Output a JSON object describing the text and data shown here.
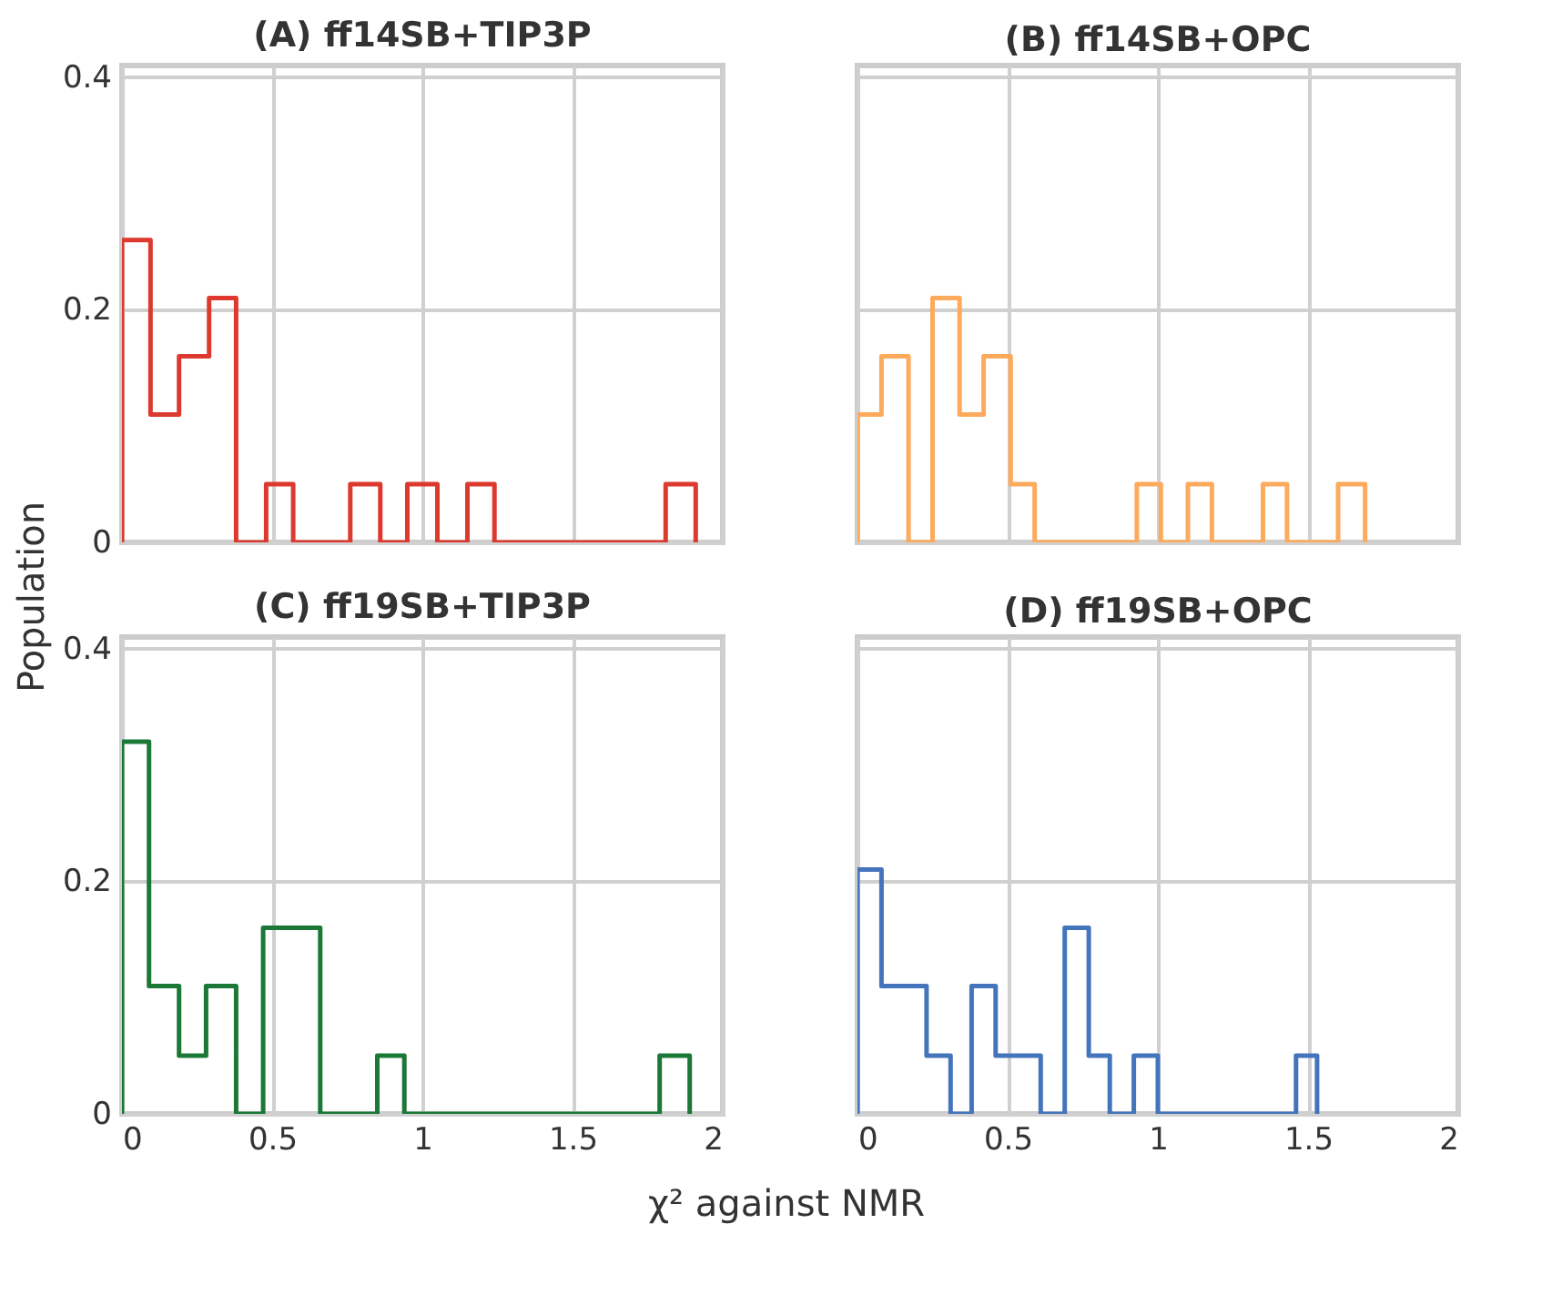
{
  "chart_data": [
    {
      "type": "histogram",
      "title": "(A) ff14SB+TIP3P",
      "ylabel": "Population",
      "color": "#dd3a2f",
      "bins": [
        0,
        0.095,
        0.19,
        0.29,
        0.38,
        0.48,
        0.57,
        0.67,
        0.76,
        0.86,
        0.95,
        1.05,
        1.15,
        1.24,
        1.34,
        1.43,
        1.53,
        1.62,
        1.72,
        1.81,
        1.91
      ],
      "values": [
        0.26,
        0.11,
        0.16,
        0.21,
        0,
        0.05,
        0,
        0,
        0.05,
        0,
        0.05,
        0,
        0.05,
        0,
        0,
        0,
        0,
        0,
        0,
        0.05
      ],
      "xlim": [
        0,
        2
      ],
      "xticks": [
        0,
        0.5,
        1,
        1.5,
        2
      ],
      "ylim": [
        0,
        0.41
      ],
      "yticks": [
        0,
        0.2,
        0.4
      ],
      "grid": true,
      "tick_labels": "y"
    },
    {
      "type": "histogram",
      "title": "(B) ff14SB+OPC",
      "color": "#fdaa5c",
      "bins": [
        0,
        0.08,
        0.17,
        0.25,
        0.34,
        0.42,
        0.51,
        0.59,
        0.67,
        0.76,
        0.84,
        0.93,
        1.01,
        1.1,
        1.18,
        1.26,
        1.35,
        1.43,
        1.52,
        1.6,
        1.69
      ],
      "values": [
        0.11,
        0.16,
        0,
        0.21,
        0.11,
        0.16,
        0.05,
        0,
        0,
        0,
        0,
        0.05,
        0,
        0.05,
        0,
        0,
        0.05,
        0,
        0,
        0.05
      ],
      "xlim": [
        0,
        2
      ],
      "xticks": [
        0,
        0.5,
        1,
        1.5,
        2
      ],
      "ylim": [
        0,
        0.41
      ],
      "yticks": [
        0,
        0.2,
        0.4
      ],
      "grid": true,
      "tick_labels": false
    },
    {
      "type": "histogram",
      "title": "(C) ff19SB+TIP3P",
      "xlabel": "χ² against NMR",
      "color": "#1b7837",
      "bins": [
        0,
        0.09,
        0.19,
        0.28,
        0.38,
        0.47,
        0.57,
        0.66,
        0.75,
        0.85,
        0.94,
        1.04,
        1.13,
        1.23,
        1.32,
        1.42,
        1.51,
        1.6,
        1.7,
        1.79,
        1.89
      ],
      "values": [
        0.32,
        0.11,
        0.05,
        0.11,
        0,
        0.16,
        0.16,
        0,
        0,
        0.05,
        0,
        0,
        0,
        0,
        0,
        0,
        0,
        0,
        0,
        0.05
      ],
      "xlim": [
        0,
        2
      ],
      "xticks": [
        0,
        0.5,
        1,
        1.5,
        2
      ],
      "ylim": [
        0,
        0.41
      ],
      "yticks": [
        0,
        0.2,
        0.4
      ],
      "grid": true
    },
    {
      "type": "histogram",
      "title": "(D) ff19SB+OPC",
      "color": "#4474bb",
      "bins": [
        0,
        0.08,
        0.15,
        0.23,
        0.31,
        0.38,
        0.46,
        0.54,
        0.61,
        0.69,
        0.77,
        0.84,
        0.92,
        1,
        1.07,
        1.15,
        1.23,
        1.3,
        1.38,
        1.46,
        1.53
      ],
      "values": [
        0.21,
        0.11,
        0.11,
        0.05,
        0,
        0.11,
        0.05,
        0.05,
        0,
        0.16,
        0.05,
        0,
        0.05,
        0,
        0,
        0,
        0,
        0,
        0,
        0.05
      ],
      "xlim": [
        0,
        2
      ],
      "xticks": [
        0,
        0.5,
        1,
        1.5,
        2
      ],
      "ylim": [
        0,
        0.41
      ],
      "yticks": [
        0,
        0.2,
        0.4
      ],
      "grid": true,
      "tick_labels": "x"
    }
  ]
}
